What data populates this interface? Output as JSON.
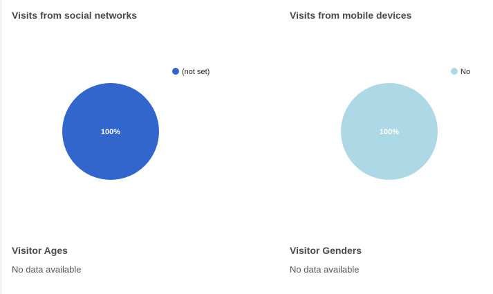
{
  "panels": {
    "social": {
      "title": "Visits from social networks"
    },
    "mobile": {
      "title": "Visits from mobile devices"
    },
    "ages": {
      "title": "Visitor Ages",
      "message": "No data available"
    },
    "genders": {
      "title": "Visitor Genders",
      "message": "No data available"
    }
  },
  "chart_data": [
    {
      "type": "pie",
      "title": "Visits from social networks",
      "categories": [
        "(not set)"
      ],
      "values": [
        100
      ],
      "data_labels": [
        "100%"
      ],
      "colors": [
        "#3366cc"
      ],
      "legend": "top-right"
    },
    {
      "type": "pie",
      "title": "Visits from mobile devices",
      "categories": [
        "No"
      ],
      "values": [
        100
      ],
      "data_labels": [
        "100%"
      ],
      "colors": [
        "#add8e6"
      ],
      "legend": "top-right"
    }
  ]
}
